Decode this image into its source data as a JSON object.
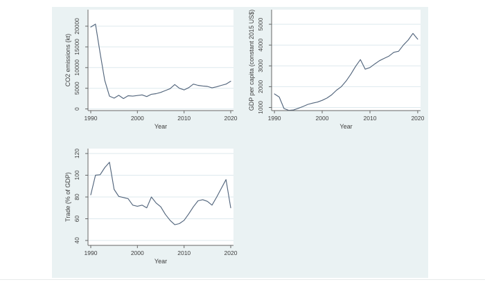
{
  "figure": {
    "page_background": "#ffffff",
    "canvas_background": "#eaf2f3",
    "plot_background": "#ffffff",
    "line_color": "#52657c",
    "grid_color": "#dde9ee",
    "axis_color": "#666666",
    "text_color": "#3d3d3d",
    "bottom_rule_color": "#e7eaea"
  },
  "chart_data": [
    {
      "type": "line",
      "title": "",
      "series_name": "co2-emissions-line",
      "ylabel": "CO2 emissions (kt)",
      "xlabel": "Year",
      "x": [
        1990,
        1991,
        1992,
        1993,
        1994,
        1995,
        1996,
        1997,
        1998,
        1999,
        2000,
        2001,
        2002,
        2003,
        2004,
        2005,
        2006,
        2007,
        2008,
        2009,
        2010,
        2011,
        2012,
        2013,
        2014,
        2015,
        2016,
        2017,
        2018,
        2019,
        2020
      ],
      "values": [
        19800,
        20500,
        13500,
        6900,
        3100,
        2600,
        3300,
        2500,
        3200,
        3100,
        3250,
        3400,
        3000,
        3550,
        3700,
        4000,
        4450,
        4900,
        5900,
        5000,
        4600,
        5150,
        6000,
        5700,
        5550,
        5450,
        5100,
        5350,
        5700,
        6000,
        6700
      ],
      "yticks": [
        0,
        5000,
        10000,
        15000,
        20000
      ],
      "ytick_labels": [
        "0",
        "5000",
        "10000",
        "15000",
        "20000"
      ],
      "xticks": [
        1990,
        2000,
        2010,
        2020
      ],
      "xtick_labels": [
        "1990",
        "2000",
        "2010",
        "2020"
      ],
      "ylim": [
        -400,
        24000
      ],
      "xlim": [
        1989.4,
        2020.6
      ],
      "grid": "horizontal",
      "legend": "none"
    },
    {
      "type": "line",
      "title": "",
      "series_name": "gdp-per-capita-line",
      "ylabel": "GDP per capita (constant 2015 US$)",
      "xlabel": "Year",
      "x": [
        1990,
        1991,
        1992,
        1993,
        1994,
        1995,
        1996,
        1997,
        1998,
        1999,
        2000,
        2001,
        2002,
        2003,
        2004,
        2005,
        2006,
        2007,
        2008,
        2009,
        2010,
        2011,
        2012,
        2013,
        2014,
        2015,
        2016,
        2017,
        2018,
        2019,
        2020
      ],
      "values": [
        1650,
        1500,
        950,
        860,
        880,
        960,
        1050,
        1150,
        1210,
        1260,
        1340,
        1450,
        1610,
        1830,
        2000,
        2270,
        2600,
        2980,
        3300,
        2840,
        2920,
        3090,
        3250,
        3360,
        3470,
        3650,
        3700,
        4000,
        4240,
        4560,
        4280
      ],
      "yticks": [
        1000,
        2000,
        3000,
        4000,
        5000
      ],
      "ytick_labels": [
        "1000",
        "2000",
        "3000",
        "4000",
        "5000"
      ],
      "xticks": [
        1990,
        2000,
        2010,
        2020
      ],
      "xtick_labels": [
        "1990",
        "2000",
        "2010",
        "2020"
      ],
      "ylim": [
        850,
        5700
      ],
      "xlim": [
        1989.4,
        2020.6
      ],
      "grid": "horizontal",
      "legend": "none"
    },
    {
      "type": "line",
      "title": "",
      "series_name": "trade-pct-gdp-line",
      "ylabel": "Trade (% of GDP)",
      "xlabel": "Year",
      "x": [
        1990,
        1991,
        1992,
        1993,
        1994,
        1995,
        1996,
        1997,
        1998,
        1999,
        2000,
        2001,
        2002,
        2003,
        2004,
        2005,
        2006,
        2007,
        2008,
        2009,
        2010,
        2011,
        2012,
        2013,
        2014,
        2015,
        2016,
        2017,
        2018,
        2019,
        2020
      ],
      "values": [
        82,
        100,
        100.5,
        107,
        112,
        87,
        80.5,
        79.5,
        78.5,
        72.5,
        71.5,
        72.5,
        70,
        80,
        74.5,
        71,
        64,
        58.5,
        54.5,
        55.5,
        58.5,
        64.5,
        71,
        76.5,
        77.5,
        76,
        72.5,
        80,
        88,
        96,
        70
      ],
      "yticks": [
        40,
        60,
        80,
        100,
        120
      ],
      "ytick_labels": [
        "40",
        "60",
        "80",
        "100",
        "120"
      ],
      "xticks": [
        1990,
        2000,
        2010,
        2020
      ],
      "xtick_labels": [
        "1990",
        "2000",
        "2010",
        "2020"
      ],
      "ylim": [
        35.5,
        124.5
      ],
      "xlim": [
        1989.4,
        2020.6
      ],
      "grid": "horizontal",
      "legend": "none"
    }
  ]
}
